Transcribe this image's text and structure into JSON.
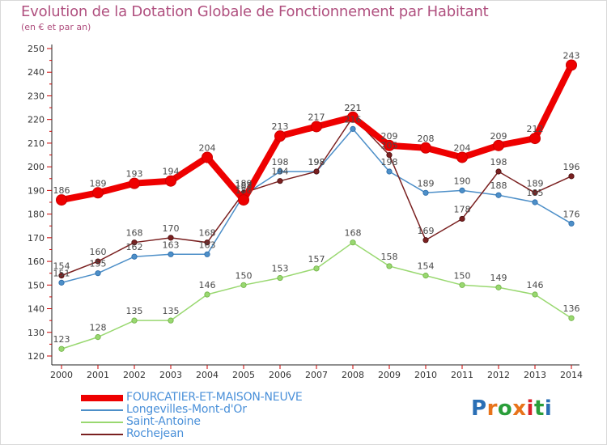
{
  "title": "Evolution de la Dotation Globale de Fonctionnement par Habitant",
  "subtitle": "(en € et par an)",
  "logo": {
    "text": "Proxiti",
    "letters": [
      "P",
      "r",
      "o",
      "x",
      "i",
      "t",
      "i"
    ],
    "colors": [
      "#2a6fb5",
      "#e8731a",
      "#2a9e3a",
      "#e8731a",
      "#d9222a",
      "#2a9e3a",
      "#2a6fb5"
    ]
  },
  "chart_data": {
    "type": "line",
    "title": "Evolution de la Dotation Globale de Fonctionnement par Habitant",
    "subtitle": "(en € et par an)",
    "xlabel": "",
    "ylabel": "",
    "x": [
      "2000",
      "2001",
      "2002",
      "2003",
      "2004",
      "2005",
      "2006",
      "2007",
      "2008",
      "2009",
      "2010",
      "2011",
      "2012",
      "2013",
      "2014"
    ],
    "ylim": [
      120,
      250
    ],
    "yticks": [
      120,
      130,
      140,
      150,
      160,
      170,
      180,
      190,
      200,
      210,
      220,
      230,
      240,
      250
    ],
    "grid": false,
    "legend_position": "bottom-left",
    "series": [
      {
        "name": "Longevilles-Mont-d'Or",
        "color": "#4d8fc8",
        "values": [
          151,
          155,
          162,
          163,
          163,
          188,
          198,
          198,
          216,
          198,
          189,
          190,
          188,
          185,
          176
        ]
      },
      {
        "name": "Saint-Antoine",
        "color": "#99d870",
        "values": [
          123,
          128,
          135,
          135,
          146,
          150,
          153,
          157,
          168,
          158,
          154,
          150,
          149,
          146,
          136
        ]
      },
      {
        "name": "Rochejean",
        "color": "#7a2020",
        "values": [
          154,
          160,
          168,
          170,
          168,
          189,
          194,
          198,
          221,
          205,
          169,
          178,
          198,
          189,
          196
        ]
      },
      {
        "name": "FOURCATIER-ET-MAISON-NEUVE",
        "color": "#ee0000",
        "values": [
          186,
          189,
          193,
          194,
          204,
          186,
          213,
          217,
          221,
          209,
          208,
          204,
          209,
          212,
          243
        ]
      }
    ],
    "value_labels": [
      [
        "151",
        "155",
        "162",
        "163",
        "163",
        "188",
        "198",
        "198",
        "216",
        "198",
        "189",
        "190",
        "188",
        "185",
        "176"
      ],
      [
        "123",
        "128",
        "135",
        "135",
        "146",
        "150",
        "153",
        "157",
        "168",
        "158",
        "154",
        "150",
        "149",
        "146",
        "136"
      ],
      [
        "154",
        "160",
        "168",
        "170",
        "168",
        "189",
        "194",
        "198",
        "221",
        "205",
        "169",
        "178",
        "198",
        "189",
        "196"
      ],
      [
        "186",
        "189",
        "193",
        "194",
        "204",
        "186",
        "213",
        "217",
        "221",
        "209",
        "208",
        "204",
        "209",
        "212",
        "243"
      ]
    ]
  },
  "legend": [
    {
      "label": "FOURCATIER-ET-MAISON-NEUVE",
      "color": "#ee0000",
      "thick": true
    },
    {
      "label": "Longevilles-Mont-d'Or",
      "color": "#4d8fc8",
      "thick": false
    },
    {
      "label": "Saint-Antoine",
      "color": "#99d870",
      "thick": false
    },
    {
      "label": "Rochejean",
      "color": "#7a2020",
      "thick": false
    }
  ]
}
